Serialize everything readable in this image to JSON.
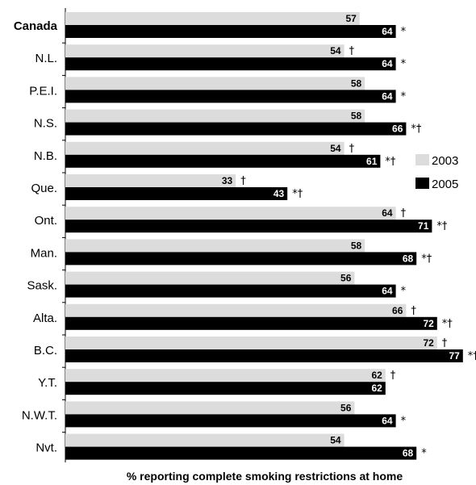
{
  "chart_data": {
    "type": "bar",
    "orientation": "horizontal",
    "categories": [
      "Canada",
      "N.L.",
      "P.E.I.",
      "N.S.",
      "N.B.",
      "Que.",
      "Ont.",
      "Man.",
      "Sask.",
      "Alta.",
      "B.C.",
      "Y.T.",
      "N.W.T.",
      "Nvt."
    ],
    "bold_categories": [
      "Canada"
    ],
    "series": [
      {
        "name": "2003",
        "color": "#dcdcdc",
        "label_color": "#000000",
        "values": [
          57,
          54,
          58,
          58,
          54,
          33,
          64,
          58,
          56,
          66,
          72,
          62,
          56,
          54
        ],
        "marks": [
          "",
          "†",
          "",
          "",
          "†",
          "†",
          "†",
          "",
          "",
          "†",
          "†",
          "†",
          "",
          ""
        ]
      },
      {
        "name": "2005",
        "color": "#000000",
        "label_color": "#ffffff",
        "values": [
          64,
          64,
          64,
          66,
          61,
          43,
          71,
          68,
          64,
          72,
          77,
          62,
          64,
          68
        ],
        "marks": [
          "*",
          "*",
          "*",
          "*†",
          "*†",
          "*†",
          "*†",
          "*†",
          "*",
          "*†",
          "*†",
          "",
          "*",
          "*"
        ]
      }
    ],
    "xlabel": "% reporting complete smoking restrictions at home",
    "xlim": [
      0,
      80
    ],
    "grid": false,
    "legend": "right"
  }
}
